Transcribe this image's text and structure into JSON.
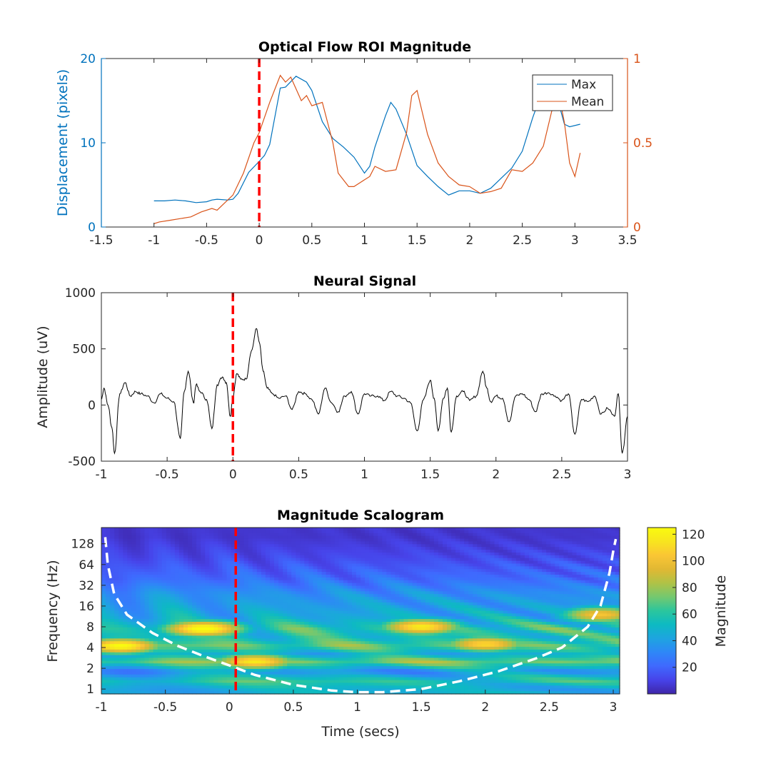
{
  "colors": {
    "max_line": "#0072BD",
    "mean_line": "#D95319",
    "neural_line": "#000000",
    "event_marker": "#FF0000",
    "coi_line": "#FFFFFF",
    "axis": "#262626",
    "colormap": [
      "#3E26A8",
      "#4743E9",
      "#3F69FE",
      "#2E87F7",
      "#1EA4E0",
      "#0DBAC2",
      "#2BC69D",
      "#74C86F",
      "#B0C246",
      "#E1B833",
      "#FAC634",
      "#F8E51E",
      "#F9FB0E"
    ]
  },
  "chart_data": [
    {
      "type": "line",
      "title": "Optical Flow ROI Magnitude",
      "xlabel": "",
      "ylabel_left": "Displacement (pixels)",
      "ylabel_right": "",
      "xlim": [
        -1.5,
        3.5
      ],
      "xticks": [
        "-1.5",
        "-1",
        "-0.5",
        "0",
        "0.5",
        "1",
        "1.5",
        "2",
        "2.5",
        "3",
        "3.5"
      ],
      "ylim_left": [
        0,
        20
      ],
      "yticks_left": [
        "0",
        "10",
        "20"
      ],
      "ylim_right": [
        0,
        1
      ],
      "yticks_right": [
        "0",
        "0.5",
        "1"
      ],
      "legend": {
        "position": "top-right",
        "entries": [
          "Max",
          "Mean"
        ]
      },
      "event_marker_x": 0,
      "series": [
        {
          "name": "Max",
          "axis": "left",
          "x": [
            -1.0,
            -0.9,
            -0.8,
            -0.7,
            -0.6,
            -0.5,
            -0.45,
            -0.4,
            -0.3,
            -0.25,
            -0.2,
            -0.1,
            0.0,
            0.05,
            0.1,
            0.2,
            0.25,
            0.35,
            0.45,
            0.5,
            0.6,
            0.7,
            0.8,
            0.9,
            1.0,
            1.05,
            1.1,
            1.2,
            1.25,
            1.3,
            1.4,
            1.5,
            1.6,
            1.7,
            1.8,
            1.9,
            2.0,
            2.1,
            2.2,
            2.3,
            2.4,
            2.5,
            2.6,
            2.7,
            2.8,
            2.85,
            2.9,
            2.95,
            3.05
          ],
          "y": [
            3.1,
            3.1,
            3.2,
            3.1,
            2.9,
            3.0,
            3.2,
            3.3,
            3.2,
            3.3,
            4.0,
            6.5,
            7.8,
            8.5,
            9.8,
            16.5,
            16.6,
            17.9,
            17.2,
            16.2,
            12.5,
            10.5,
            9.5,
            8.3,
            6.4,
            7.2,
            9.5,
            13.2,
            14.8,
            14.0,
            11.0,
            7.3,
            6.0,
            4.8,
            3.8,
            4.3,
            4.3,
            4.0,
            4.6,
            5.8,
            7.0,
            9.0,
            13.0,
            16.5,
            16.0,
            14.5,
            12.2,
            11.9,
            12.2
          ]
        },
        {
          "name": "Mean",
          "axis": "right",
          "x": [
            -1.0,
            -0.95,
            -0.85,
            -0.75,
            -0.65,
            -0.55,
            -0.45,
            -0.4,
            -0.35,
            -0.25,
            -0.15,
            -0.05,
            0.0,
            0.1,
            0.15,
            0.2,
            0.25,
            0.3,
            0.4,
            0.45,
            0.5,
            0.6,
            0.7,
            0.75,
            0.85,
            0.9,
            1.0,
            1.05,
            1.1,
            1.2,
            1.3,
            1.4,
            1.45,
            1.5,
            1.6,
            1.7,
            1.8,
            1.9,
            2.0,
            2.1,
            2.2,
            2.3,
            2.4,
            2.5,
            2.6,
            2.7,
            2.8,
            2.85,
            2.9,
            2.95,
            3.0,
            3.05
          ],
          "y": [
            0.02,
            0.03,
            0.04,
            0.05,
            0.06,
            0.09,
            0.11,
            0.1,
            0.13,
            0.19,
            0.32,
            0.5,
            0.56,
            0.74,
            0.82,
            0.9,
            0.86,
            0.89,
            0.75,
            0.78,
            0.72,
            0.74,
            0.5,
            0.32,
            0.24,
            0.24,
            0.28,
            0.3,
            0.36,
            0.33,
            0.34,
            0.56,
            0.78,
            0.81,
            0.55,
            0.38,
            0.3,
            0.25,
            0.24,
            0.2,
            0.21,
            0.23,
            0.34,
            0.33,
            0.38,
            0.48,
            0.74,
            0.78,
            0.62,
            0.38,
            0.3,
            0.44
          ]
        }
      ]
    },
    {
      "type": "line",
      "title": "Neural Signal",
      "xlabel": "",
      "ylabel": "Amplitude (uV)",
      "xlim": [
        -1,
        3
      ],
      "xticks": [
        "-1",
        "-0.5",
        "0",
        "0.5",
        "1",
        "1.5",
        "2",
        "2.5",
        "3"
      ],
      "ylim": [
        -500,
        1000
      ],
      "yticks": [
        "-500",
        "0",
        "500",
        "1000"
      ],
      "event_marker_x": 0,
      "series": [
        {
          "name": "",
          "x": [
            -1.0,
            -0.98,
            -0.95,
            -0.92,
            -0.9,
            -0.86,
            -0.82,
            -0.78,
            -0.74,
            -0.7,
            -0.65,
            -0.6,
            -0.55,
            -0.5,
            -0.45,
            -0.4,
            -0.37,
            -0.34,
            -0.3,
            -0.28,
            -0.25,
            -0.2,
            -0.16,
            -0.12,
            -0.08,
            -0.05,
            -0.02,
            0.0,
            0.03,
            0.06,
            0.1,
            0.14,
            0.18,
            0.2,
            0.23,
            0.26,
            0.3,
            0.35,
            0.4,
            0.45,
            0.5,
            0.55,
            0.6,
            0.65,
            0.7,
            0.75,
            0.8,
            0.85,
            0.9,
            0.95,
            1.0,
            1.05,
            1.1,
            1.15,
            1.2,
            1.25,
            1.3,
            1.35,
            1.4,
            1.45,
            1.5,
            1.53,
            1.56,
            1.6,
            1.63,
            1.66,
            1.7,
            1.75,
            1.8,
            1.85,
            1.9,
            1.93,
            1.96,
            2.0,
            2.05,
            2.1,
            2.15,
            2.2,
            2.25,
            2.3,
            2.35,
            2.4,
            2.45,
            2.5,
            2.55,
            2.6,
            2.65,
            2.7,
            2.75,
            2.8,
            2.85,
            2.9,
            2.93,
            2.96,
            3.0
          ],
          "y": [
            50,
            150,
            0,
            -200,
            -430,
            100,
            200,
            80,
            120,
            100,
            80,
            20,
            100,
            60,
            30,
            -300,
            120,
            300,
            20,
            180,
            120,
            50,
            -210,
            180,
            250,
            200,
            -100,
            80,
            280,
            230,
            230,
            480,
            680,
            560,
            300,
            150,
            100,
            60,
            80,
            -40,
            120,
            100,
            50,
            -80,
            150,
            20,
            -60,
            80,
            120,
            -80,
            100,
            80,
            80,
            40,
            120,
            80,
            60,
            20,
            -230,
            50,
            220,
            60,
            -230,
            60,
            150,
            -240,
            80,
            120,
            40,
            80,
            300,
            150,
            30,
            80,
            60,
            -150,
            80,
            100,
            50,
            -60,
            100,
            110,
            80,
            40,
            100,
            -260,
            50,
            30,
            80,
            -80,
            -30,
            -100,
            100,
            -430,
            -100
          ]
        }
      ]
    },
    {
      "type": "heatmap",
      "title": "Magnitude Scalogram",
      "xlabel": "Time (secs)",
      "ylabel": "Frequency (Hz)",
      "xlim": [
        -1,
        3.05
      ],
      "xticks": [
        "-1",
        "-0.5",
        "0",
        "0.5",
        "1",
        "1.5",
        "2",
        "2.5",
        "3"
      ],
      "yscale": "log2",
      "ylim": [
        0.85,
        220
      ],
      "yticks": [
        "1",
        "2",
        "4",
        "8",
        "16",
        "32",
        "64",
        "128"
      ],
      "colorbar": {
        "label": "Magnitude",
        "range": [
          0,
          125
        ],
        "ticks": [
          "20",
          "40",
          "60",
          "80",
          "100",
          "120"
        ]
      },
      "event_marker_x": 0.05,
      "bands": [
        {
          "freq": 1.0,
          "base": 45,
          "var": 10
        },
        {
          "freq": 1.3,
          "base": 60,
          "var": 15
        },
        {
          "freq": 1.8,
          "base": 35,
          "var": 15
        },
        {
          "freq": 2.5,
          "base": 75,
          "var": 15
        },
        {
          "freq": 3.2,
          "base": 45,
          "var": 12
        },
        {
          "freq": 4.2,
          "base": 70,
          "var": 15
        },
        {
          "freq": 5.5,
          "base": 55,
          "var": 15
        },
        {
          "freq": 7.5,
          "base": 60,
          "var": 20
        },
        {
          "freq": 11,
          "base": 45,
          "var": 15
        },
        {
          "freq": 16,
          "base": 40,
          "var": 12
        },
        {
          "freq": 24,
          "base": 35,
          "var": 10
        },
        {
          "freq": 40,
          "base": 22,
          "var": 10
        },
        {
          "freq": 80,
          "base": 12,
          "var": 6
        },
        {
          "freq": 160,
          "base": 6,
          "var": 3
        }
      ],
      "hotspots": [
        {
          "t": -0.85,
          "freq": 4.2,
          "value": 105
        },
        {
          "t": -0.2,
          "freq": 7.5,
          "value": 110
        },
        {
          "t": 0.2,
          "freq": 2.5,
          "value": 95
        },
        {
          "t": 1.5,
          "freq": 8.0,
          "value": 100
        },
        {
          "t": 2.0,
          "freq": 4.5,
          "value": 90
        },
        {
          "t": 2.9,
          "freq": 12,
          "value": 90
        }
      ],
      "coi": {
        "t": [
          -0.97,
          -0.95,
          -0.9,
          -0.8,
          -0.6,
          -0.4,
          -0.2,
          0.0,
          0.2,
          0.5,
          0.8,
          1.0,
          1.2,
          1.5,
          1.8,
          2.1,
          2.4,
          2.6,
          2.8,
          2.9,
          2.97,
          3.0,
          3.02
        ],
        "freq": [
          160,
          64,
          24,
          12,
          6.5,
          4.2,
          3.0,
          2.2,
          1.6,
          1.15,
          0.95,
          0.9,
          0.9,
          1.0,
          1.3,
          1.8,
          2.8,
          4.0,
          8.0,
          16,
          48,
          100,
          150
        ]
      }
    }
  ]
}
